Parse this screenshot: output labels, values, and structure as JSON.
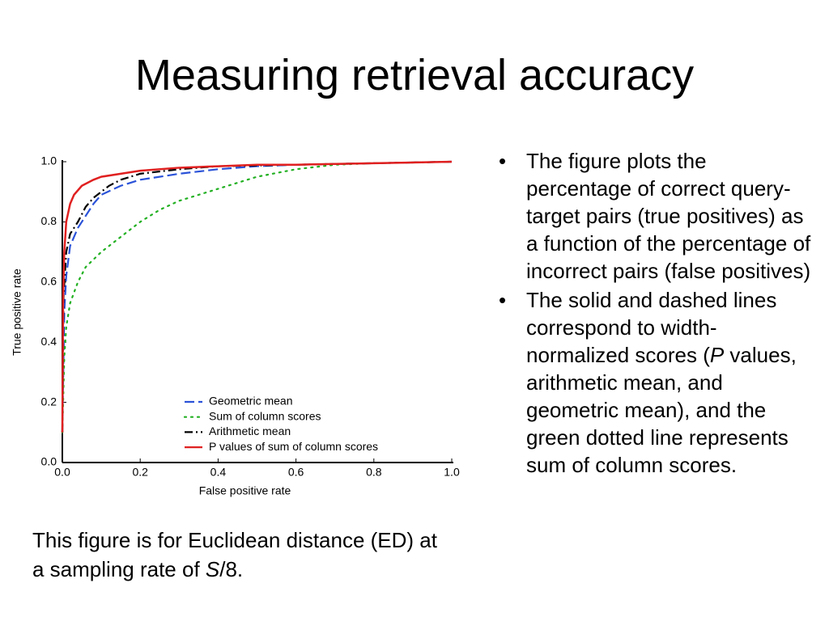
{
  "title": "Measuring retrieval accuracy",
  "chart_data": {
    "type": "line",
    "xlabel": "False positive rate",
    "ylabel": "True positive rate",
    "xlim": [
      0,
      1
    ],
    "ylim": [
      0,
      1
    ],
    "xticks": [
      {
        "value": 0,
        "label": "0.0"
      },
      0.2,
      0.4,
      0.6,
      0.8,
      {
        "value": 1,
        "label": "1.0"
      }
    ],
    "yticks": [
      {
        "value": 0,
        "label": "0.0"
      },
      0.2,
      0.4,
      0.6,
      0.8,
      {
        "value": 1,
        "label": "1.0"
      }
    ],
    "legend": "lower right",
    "series": [
      {
        "name": "Geometric mean",
        "color": "#2a52d8",
        "dash": "dashed",
        "x": [
          0,
          0.005,
          0.01,
          0.02,
          0.04,
          0.06,
          0.08,
          0.1,
          0.15,
          0.2,
          0.3,
          0.4,
          0.5,
          0.6,
          0.8,
          1
        ],
        "values": [
          0.1,
          0.5,
          0.62,
          0.72,
          0.78,
          0.82,
          0.86,
          0.89,
          0.92,
          0.94,
          0.96,
          0.975,
          0.985,
          0.99,
          0.995,
          1
        ]
      },
      {
        "name": "Sum of column scores",
        "color": "#22b022",
        "dash": "dotted",
        "x": [
          0,
          0.005,
          0.01,
          0.02,
          0.04,
          0.06,
          0.1,
          0.15,
          0.2,
          0.25,
          0.3,
          0.4,
          0.5,
          0.6,
          0.7,
          0.8,
          1
        ],
        "values": [
          0.1,
          0.35,
          0.45,
          0.53,
          0.6,
          0.65,
          0.7,
          0.75,
          0.8,
          0.84,
          0.87,
          0.91,
          0.95,
          0.975,
          0.99,
          0.995,
          1
        ]
      },
      {
        "name": "Arithmetic mean",
        "color": "#000000",
        "dash": "dashdot",
        "x": [
          0,
          0.003,
          0.01,
          0.02,
          0.04,
          0.06,
          0.08,
          0.1,
          0.12,
          0.15,
          0.2,
          0.3,
          0.4,
          0.6,
          0.8,
          1
        ],
        "values": [
          0.1,
          0.55,
          0.7,
          0.76,
          0.8,
          0.85,
          0.88,
          0.9,
          0.92,
          0.94,
          0.96,
          0.975,
          0.985,
          0.99,
          0.995,
          1
        ]
      },
      {
        "name": "P values of sum of column scores",
        "color": "#e02020",
        "dash": "solid",
        "x": [
          0,
          0.002,
          0.005,
          0.01,
          0.02,
          0.03,
          0.05,
          0.08,
          0.1,
          0.15,
          0.2,
          0.3,
          0.4,
          0.5,
          0.6,
          0.8,
          1
        ],
        "values": [
          0.1,
          0.55,
          0.7,
          0.8,
          0.86,
          0.89,
          0.92,
          0.94,
          0.95,
          0.96,
          0.97,
          0.98,
          0.985,
          0.99,
          0.99,
          0.995,
          1
        ]
      }
    ]
  },
  "caption": [
    "This figure is for Euclidean distance (ED) at a sampling rate of ",
    {
      "text": "S",
      "italic": true
    },
    "/8."
  ],
  "bullets": [
    [
      "The figure plots the percentage of correct query-target pairs (true positives) as a function of the percentage of incorrect pairs (false positives)"
    ],
    [
      "The solid and dashed lines correspond to width-normalized scores (",
      {
        "text": "P",
        "italic": true
      },
      " values, arithmetic mean, and geometric mean), and the green dotted line represents sum of column scores."
    ]
  ]
}
